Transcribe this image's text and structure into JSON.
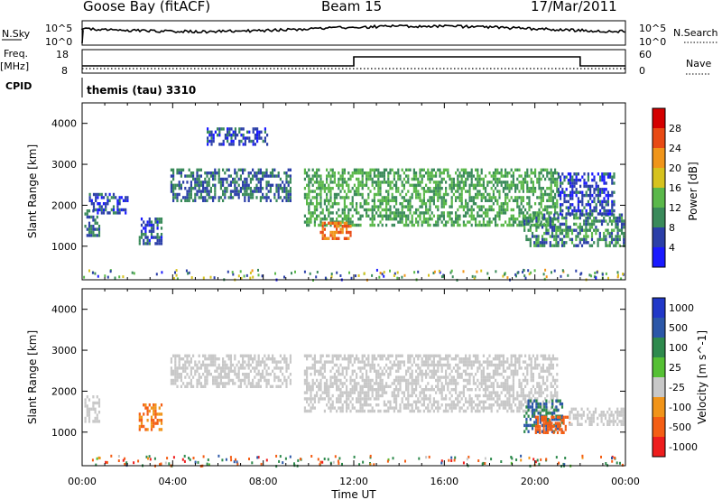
{
  "header": {
    "station": "Goose Bay (fitACF)",
    "beam": "Beam 15",
    "date": "17/Mar/2011"
  },
  "side_labels": {
    "nsky": "N.Sky",
    "freq_top": "Freq.",
    "freq_unit": "[MHz]",
    "cpid": "CPID",
    "nsearch": "N.Search",
    "nave": "Nave",
    "power_scale": "10^5",
    "power_zero": "10^0",
    "freq_ticks": [
      "18",
      "8"
    ],
    "nave_ticks": [
      "60",
      "0"
    ]
  },
  "cpid_text": "themis (tau) 3310",
  "colors": {
    "power": [
      "#1a1aff",
      "#2b3fa8",
      "#3a8a5a",
      "#5ab84a",
      "#d6c21e",
      "#f0951a",
      "#e84a14",
      "#d40000"
    ],
    "velocity_neg": [
      "#ee1d1d",
      "#f45e14",
      "#f19419"
    ],
    "velocity_gs": "#c8c8c8",
    "velocity_pos": [
      "#55c034",
      "#2e8a4d",
      "#2b57a8",
      "#2138c8"
    ]
  },
  "chart_data": [
    {
      "type": "heatmap",
      "title": "",
      "ylabel": "Slant Range [km]",
      "xlabel": "",
      "x_ticks": [
        "00:00",
        "04:00",
        "08:00",
        "12:00",
        "16:00",
        "20:00",
        "00:00"
      ],
      "y_ticks": [
        "1000",
        "2000",
        "3000",
        "4000"
      ],
      "ylim": [
        180,
        4500
      ],
      "xlim_hours": [
        0,
        24
      ],
      "colorbar": {
        "label": "Power [dB]",
        "ticks": [
          "4",
          "8",
          "12",
          "16",
          "20",
          "24",
          "28"
        ],
        "range": [
          0,
          30
        ]
      },
      "regions": [
        {
          "t0": 0.1,
          "t1": 0.8,
          "r0": 1300,
          "r1": 1900,
          "value": 8
        },
        {
          "t0": 0.3,
          "t1": 2.0,
          "r0": 1800,
          "r1": 2300,
          "value": 6
        },
        {
          "t0": 2.5,
          "t1": 3.5,
          "r0": 1100,
          "r1": 1700,
          "value": 7
        },
        {
          "t0": 3.9,
          "t1": 9.2,
          "r0": 2100,
          "r1": 2900,
          "value": 8
        },
        {
          "t0": 5.5,
          "t1": 8.2,
          "r0": 3500,
          "r1": 3900,
          "value": 6
        },
        {
          "t0": 9.8,
          "t1": 21.0,
          "r0": 1500,
          "r1": 2900,
          "value": 12
        },
        {
          "t0": 10.5,
          "t1": 11.9,
          "r0": 1200,
          "r1": 1600,
          "value": 24
        },
        {
          "t0": 19.5,
          "t1": 23.9,
          "r0": 1000,
          "r1": 1800,
          "value": 10
        },
        {
          "t0": 21.0,
          "t1": 23.5,
          "r0": 1800,
          "r1": 2800,
          "value": 6
        }
      ]
    },
    {
      "type": "heatmap",
      "title": "",
      "ylabel": "Slant Range [km]",
      "xlabel": "Time UT",
      "x_ticks": [
        "00:00",
        "04:00",
        "08:00",
        "12:00",
        "16:00",
        "20:00",
        "00:00"
      ],
      "y_ticks": [
        "1000",
        "2000",
        "3000",
        "4000"
      ],
      "ylim": [
        180,
        4500
      ],
      "xlim_hours": [
        0,
        24
      ],
      "colorbar": {
        "label": "Velocity [m s^-1]",
        "ticks": [
          "1000",
          "500",
          "100",
          "25",
          "-25",
          "-100",
          "-500",
          "-1000"
        ],
        "range": [
          -1000,
          1000
        ]
      },
      "regions": [
        {
          "t0": 0.1,
          "t1": 0.8,
          "r0": 1300,
          "r1": 1900,
          "value": 0
        },
        {
          "t0": 2.5,
          "t1": 3.5,
          "r0": 1100,
          "r1": 1700,
          "value": -100
        },
        {
          "t0": 3.9,
          "t1": 9.2,
          "r0": 2100,
          "r1": 2900,
          "value": 0
        },
        {
          "t0": 9.8,
          "t1": 21.0,
          "r0": 1500,
          "r1": 2900,
          "value": 0
        },
        {
          "t0": 19.5,
          "t1": 21.2,
          "r0": 1000,
          "r1": 1800,
          "value": 500
        },
        {
          "t0": 20.0,
          "t1": 21.5,
          "r0": 1000,
          "r1": 1400,
          "value": -300
        },
        {
          "t0": 21.5,
          "t1": 23.9,
          "r0": 1200,
          "r1": 1600,
          "value": 0
        }
      ]
    }
  ]
}
